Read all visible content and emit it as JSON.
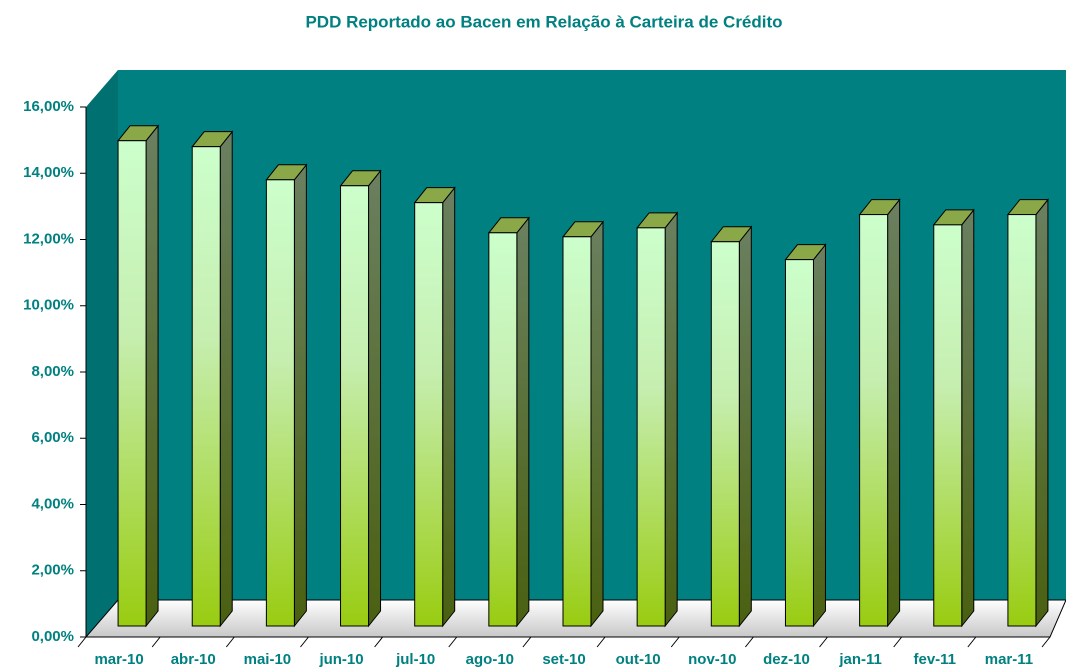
{
  "chart_data": {
    "type": "bar3d",
    "title": "PDD Reportado ao Bacen em Relação à Carteira de Crédito",
    "categories": [
      "mar-10",
      "abr-10",
      "mai-10",
      "jun-10",
      "jul-10",
      "ago-10",
      "set-10",
      "out-10",
      "nov-10",
      "dez-10",
      "jan-11",
      "fev-11",
      "mar-11"
    ],
    "values": [
      14.65,
      14.47,
      13.47,
      13.29,
      12.78,
      11.87,
      11.75,
      12.02,
      11.6,
      11.06,
      12.42,
      12.11,
      12.42
    ],
    "color": "#99cc00",
    "ylim": [
      0,
      16
    ],
    "yticks": [
      {
        "value": 0,
        "label": "0,00%"
      },
      {
        "value": 2,
        "label": "2,00%"
      },
      {
        "value": 4,
        "label": "4,00%"
      },
      {
        "value": 6,
        "label": "6,00%"
      },
      {
        "value": 8,
        "label": "8,00%"
      },
      {
        "value": 10,
        "label": "10,00%"
      },
      {
        "value": 12,
        "label": "12,00%"
      },
      {
        "value": 14,
        "label": "14,00%"
      },
      {
        "value": 16,
        "label": "16,00%"
      }
    ],
    "grid": false
  }
}
